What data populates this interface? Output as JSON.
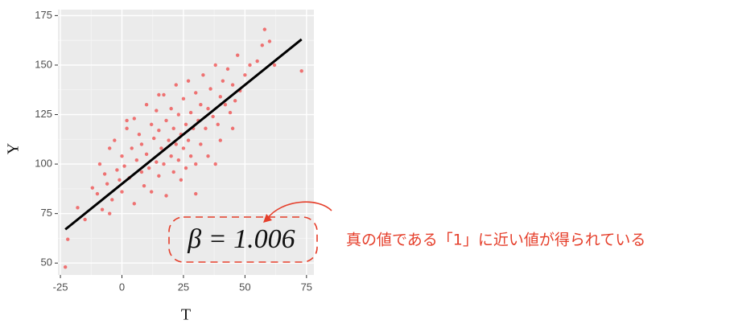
{
  "chart_data": {
    "type": "scatter",
    "x_label": "T",
    "y_label": "Y",
    "xlim": [
      -26,
      78
    ],
    "ylim": [
      44,
      178
    ],
    "xticks": [
      -25,
      0,
      25,
      50,
      75
    ],
    "yticks": [
      50,
      75,
      100,
      125,
      150,
      175
    ],
    "grid": true,
    "series": [
      {
        "color": "#f0302f",
        "x": [
          -23,
          -22,
          -18,
          -15,
          -12,
          -10,
          -9,
          -8,
          -7,
          -6,
          -5,
          -4,
          -3,
          -2,
          -1,
          0,
          0,
          1,
          2,
          3,
          4,
          5,
          5,
          6,
          7,
          8,
          8,
          9,
          10,
          10,
          11,
          12,
          12,
          13,
          14,
          14,
          15,
          15,
          16,
          17,
          17,
          18,
          18,
          19,
          20,
          20,
          21,
          21,
          22,
          22,
          23,
          23,
          24,
          24,
          25,
          25,
          26,
          26,
          27,
          27,
          28,
          28,
          29,
          30,
          30,
          31,
          32,
          32,
          33,
          34,
          35,
          35,
          36,
          37,
          38,
          39,
          40,
          40,
          41,
          42,
          43,
          44,
          45,
          46,
          47,
          48,
          50,
          52,
          55,
          57,
          60,
          62,
          73,
          58,
          45,
          38,
          30,
          15,
          2,
          -5
        ],
        "values": [
          48,
          62,
          78,
          72,
          88,
          85,
          100,
          77,
          95,
          90,
          108,
          82,
          112,
          97,
          92,
          86,
          104,
          99,
          118,
          93,
          108,
          80,
          123,
          102,
          115,
          96,
          110,
          89,
          130,
          105,
          98,
          120,
          86,
          113,
          101,
          127,
          94,
          117,
          108,
          135,
          100,
          122,
          84,
          112,
          104,
          128,
          96,
          118,
          110,
          140,
          102,
          125,
          92,
          115,
          133,
          108,
          120,
          98,
          142,
          112,
          126,
          104,
          118,
          136,
          100,
          122,
          130,
          110,
          145,
          118,
          128,
          104,
          138,
          124,
          150,
          120,
          134,
          112,
          142,
          130,
          148,
          126,
          140,
          132,
          155,
          137,
          145,
          150,
          152,
          160,
          162,
          150,
          147,
          168,
          118,
          100,
          85,
          135,
          122,
          75
        ]
      }
    ],
    "fit_line": {
      "color": "#000000",
      "x": [
        -23,
        73
      ],
      "y": [
        67,
        163
      ]
    },
    "annotation": "β = 1.006",
    "note": "真の値である「1」に近い値が得られている"
  }
}
